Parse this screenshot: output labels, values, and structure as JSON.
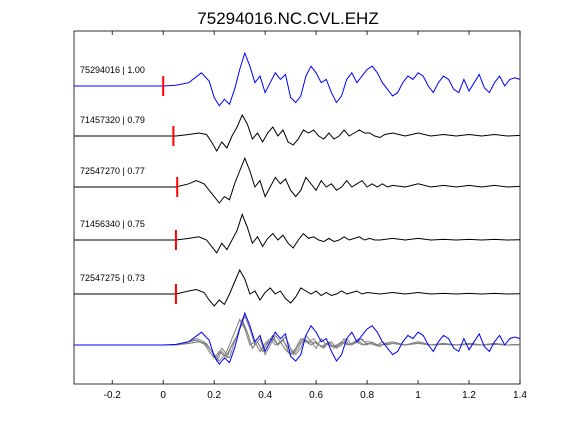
{
  "chart_data": {
    "type": "line",
    "title": "75294016.NC.CVL.EHZ",
    "xlabel": "",
    "ylabel": "",
    "xlim": [
      -0.35,
      1.4
    ],
    "x_ticks": [
      -0.2,
      0,
      0.2,
      0.4,
      0.6,
      0.8,
      1,
      1.2,
      1.4
    ],
    "x_tick_labels": [
      "-0.2",
      "0",
      "0.2",
      "0.4",
      "0.6",
      "0.8",
      "1",
      "1.2",
      "1.4"
    ],
    "grid": false,
    "series": [
      {
        "label": "75294016 | 1.00",
        "color": "#0000ff",
        "pick_time": 0.0,
        "baseline_level": 1,
        "points": [
          [
            -0.35,
            0
          ],
          [
            -0.2,
            0
          ],
          [
            0,
            0
          ],
          [
            0.05,
            0.02
          ],
          [
            0.1,
            0.1
          ],
          [
            0.15,
            0.4
          ],
          [
            0.18,
            0.15
          ],
          [
            0.2,
            -0.35
          ],
          [
            0.22,
            -0.6
          ],
          [
            0.24,
            -0.4
          ],
          [
            0.26,
            -0.55
          ],
          [
            0.28,
            -0.1
          ],
          [
            0.3,
            0.5
          ],
          [
            0.32,
            1.0
          ],
          [
            0.34,
            0.6
          ],
          [
            0.36,
            0.1
          ],
          [
            0.38,
            0.3
          ],
          [
            0.4,
            -0.2
          ],
          [
            0.42,
            0.1
          ],
          [
            0.44,
            0.4
          ],
          [
            0.46,
            0.2
          ],
          [
            0.48,
            0.35
          ],
          [
            0.5,
            -0.35
          ],
          [
            0.52,
            -0.5
          ],
          [
            0.54,
            -0.3
          ],
          [
            0.56,
            0.3
          ],
          [
            0.58,
            0.6
          ],
          [
            0.6,
            0.4
          ],
          [
            0.62,
            0.1
          ],
          [
            0.64,
            0.2
          ],
          [
            0.66,
            -0.2
          ],
          [
            0.68,
            -0.5
          ],
          [
            0.7,
            -0.3
          ],
          [
            0.72,
            0.2
          ],
          [
            0.74,
            0.4
          ],
          [
            0.76,
            0.1
          ],
          [
            0.78,
            0.3
          ],
          [
            0.8,
            0.5
          ],
          [
            0.82,
            0.6
          ],
          [
            0.84,
            0.4
          ],
          [
            0.86,
            0.1
          ],
          [
            0.88,
            -0.1
          ],
          [
            0.9,
            -0.3
          ],
          [
            0.92,
            -0.2
          ],
          [
            0.94,
            0.1
          ],
          [
            0.96,
            0.3
          ],
          [
            0.98,
            0.2
          ],
          [
            1.0,
            0.4
          ],
          [
            1.02,
            0.3
          ],
          [
            1.04,
            0.0
          ],
          [
            1.06,
            -0.2
          ],
          [
            1.08,
            0.1
          ],
          [
            1.1,
            0.3
          ],
          [
            1.12,
            0.2
          ],
          [
            1.14,
            -0.1
          ],
          [
            1.16,
            -0.2
          ],
          [
            1.18,
            0.2
          ],
          [
            1.2,
            -0.15
          ],
          [
            1.22,
            0.1
          ],
          [
            1.24,
            0.35
          ],
          [
            1.26,
            -0.05
          ],
          [
            1.28,
            -0.2
          ],
          [
            1.3,
            0.1
          ],
          [
            1.32,
            0.3
          ],
          [
            1.34,
            0.0
          ],
          [
            1.36,
            0.2
          ],
          [
            1.38,
            0.25
          ],
          [
            1.4,
            0.2
          ]
        ]
      },
      {
        "label": "71457320 | 0.79",
        "color": "#000000",
        "pick_time": 0.04,
        "baseline_level": 2,
        "points": [
          [
            -0.35,
            0
          ],
          [
            0,
            0
          ],
          [
            0.05,
            0
          ],
          [
            0.1,
            0.05
          ],
          [
            0.14,
            0.1
          ],
          [
            0.17,
            0.05
          ],
          [
            0.19,
            -0.2
          ],
          [
            0.21,
            -0.5
          ],
          [
            0.23,
            -0.2
          ],
          [
            0.25,
            -0.4
          ],
          [
            0.27,
            0.0
          ],
          [
            0.29,
            0.3
          ],
          [
            0.31,
            0.7
          ],
          [
            0.33,
            0.4
          ],
          [
            0.35,
            -0.1
          ],
          [
            0.37,
            0.1
          ],
          [
            0.39,
            -0.2
          ],
          [
            0.41,
            0.1
          ],
          [
            0.43,
            0.3
          ],
          [
            0.45,
            0.0
          ],
          [
            0.47,
            0.2
          ],
          [
            0.49,
            -0.2
          ],
          [
            0.51,
            -0.3
          ],
          [
            0.53,
            -0.1
          ],
          [
            0.55,
            0.2
          ],
          [
            0.57,
            0.1
          ],
          [
            0.59,
            0.2
          ],
          [
            0.61,
            0.0
          ],
          [
            0.63,
            -0.1
          ],
          [
            0.65,
            0.1
          ],
          [
            0.67,
            -0.1
          ],
          [
            0.69,
            0.0
          ],
          [
            0.71,
            0.2
          ],
          [
            0.73,
            0.0
          ],
          [
            0.75,
            0.1
          ],
          [
            0.77,
            0.2
          ],
          [
            0.79,
            0.1
          ],
          [
            0.81,
            0.1
          ],
          [
            0.83,
            0.0
          ],
          [
            0.85,
            -0.05
          ],
          [
            0.87,
            0.05
          ],
          [
            0.9,
            0.1
          ],
          [
            0.95,
            0.0
          ],
          [
            1.0,
            0.1
          ],
          [
            1.05,
            0.0
          ],
          [
            1.1,
            0.05
          ],
          [
            1.15,
            0.0
          ],
          [
            1.2,
            0.05
          ],
          [
            1.25,
            0.0
          ],
          [
            1.3,
            0.05
          ],
          [
            1.35,
            0.0
          ],
          [
            1.4,
            0.02
          ]
        ]
      },
      {
        "label": "72547270 | 0.77",
        "color": "#000000",
        "pick_time": 0.055,
        "baseline_level": 3,
        "points": [
          [
            -0.35,
            0
          ],
          [
            0,
            0
          ],
          [
            0.05,
            0
          ],
          [
            0.1,
            0.1
          ],
          [
            0.13,
            0.2
          ],
          [
            0.16,
            0.1
          ],
          [
            0.18,
            -0.1
          ],
          [
            0.2,
            -0.3
          ],
          [
            0.22,
            -0.5
          ],
          [
            0.24,
            -0.3
          ],
          [
            0.26,
            -0.4
          ],
          [
            0.28,
            0.1
          ],
          [
            0.3,
            0.5
          ],
          [
            0.32,
            0.9
          ],
          [
            0.34,
            0.5
          ],
          [
            0.36,
            0.0
          ],
          [
            0.38,
            0.2
          ],
          [
            0.4,
            -0.3
          ],
          [
            0.42,
            0.0
          ],
          [
            0.44,
            0.3
          ],
          [
            0.46,
            0.1
          ],
          [
            0.48,
            0.25
          ],
          [
            0.5,
            -0.1
          ],
          [
            0.52,
            -0.3
          ],
          [
            0.54,
            -0.1
          ],
          [
            0.56,
            0.3
          ],
          [
            0.58,
            0.1
          ],
          [
            0.6,
            -0.1
          ],
          [
            0.62,
            0.2
          ],
          [
            0.64,
            0.0
          ],
          [
            0.66,
            0.1
          ],
          [
            0.68,
            -0.1
          ],
          [
            0.7,
            0.0
          ],
          [
            0.72,
            0.2
          ],
          [
            0.74,
            0.0
          ],
          [
            0.76,
            0.1
          ],
          [
            0.78,
            0.2
          ],
          [
            0.8,
            0.0
          ],
          [
            0.82,
            0.1
          ],
          [
            0.84,
            0.0
          ],
          [
            0.86,
            0.1
          ],
          [
            0.88,
            0.0
          ],
          [
            0.9,
            0.05
          ],
          [
            0.95,
            0.0
          ],
          [
            1.0,
            0.1
          ],
          [
            1.05,
            0.0
          ],
          [
            1.1,
            0.05
          ],
          [
            1.15,
            0.0
          ],
          [
            1.2,
            0.05
          ],
          [
            1.25,
            0.0
          ],
          [
            1.3,
            0.05
          ],
          [
            1.35,
            0.0
          ],
          [
            1.4,
            0.02
          ]
        ]
      },
      {
        "label": "71456340 | 0.75",
        "color": "#000000",
        "pick_time": 0.05,
        "baseline_level": 4,
        "points": [
          [
            -0.35,
            0
          ],
          [
            0,
            0
          ],
          [
            0.05,
            0
          ],
          [
            0.1,
            0.05
          ],
          [
            0.14,
            0.1
          ],
          [
            0.17,
            0.0
          ],
          [
            0.19,
            -0.2
          ],
          [
            0.21,
            -0.4
          ],
          [
            0.23,
            -0.1
          ],
          [
            0.25,
            -0.3
          ],
          [
            0.27,
            0.0
          ],
          [
            0.29,
            0.3
          ],
          [
            0.31,
            0.8
          ],
          [
            0.33,
            0.4
          ],
          [
            0.35,
            -0.1
          ],
          [
            0.37,
            0.1
          ],
          [
            0.39,
            -0.2
          ],
          [
            0.41,
            0.05
          ],
          [
            0.43,
            0.2
          ],
          [
            0.45,
            0.0
          ],
          [
            0.47,
            0.15
          ],
          [
            0.49,
            -0.1
          ],
          [
            0.51,
            -0.25
          ],
          [
            0.53,
            0.0
          ],
          [
            0.55,
            0.2
          ],
          [
            0.57,
            0.05
          ],
          [
            0.59,
            0.1
          ],
          [
            0.61,
            0.0
          ],
          [
            0.63,
            -0.05
          ],
          [
            0.65,
            0.05
          ],
          [
            0.67,
            -0.05
          ],
          [
            0.69,
            0.0
          ],
          [
            0.71,
            0.1
          ],
          [
            0.73,
            0.0
          ],
          [
            0.75,
            0.05
          ],
          [
            0.77,
            0.1
          ],
          [
            0.79,
            0.0
          ],
          [
            0.81,
            0.05
          ],
          [
            0.83,
            0.0
          ],
          [
            0.85,
            0.0
          ],
          [
            0.9,
            0.05
          ],
          [
            0.95,
            0.0
          ],
          [
            1.0,
            0.05
          ],
          [
            1.05,
            0.0
          ],
          [
            1.1,
            0.02
          ],
          [
            1.15,
            0.0
          ],
          [
            1.2,
            0.02
          ],
          [
            1.25,
            0.0
          ],
          [
            1.3,
            0.02
          ],
          [
            1.35,
            0.0
          ],
          [
            1.4,
            0.01
          ]
        ]
      },
      {
        "label": "72547275 | 0.73",
        "color": "#000000",
        "pick_time": 0.05,
        "baseline_level": 5,
        "points": [
          [
            -0.35,
            0
          ],
          [
            0,
            0
          ],
          [
            0.05,
            0
          ],
          [
            0.1,
            0.1
          ],
          [
            0.13,
            0.15
          ],
          [
            0.16,
            0.05
          ],
          [
            0.18,
            -0.2
          ],
          [
            0.2,
            -0.4
          ],
          [
            0.22,
            -0.2
          ],
          [
            0.24,
            -0.35
          ],
          [
            0.26,
            0.0
          ],
          [
            0.28,
            0.4
          ],
          [
            0.3,
            0.8
          ],
          [
            0.32,
            0.5
          ],
          [
            0.34,
            0.0
          ],
          [
            0.36,
            0.1
          ],
          [
            0.38,
            -0.2
          ],
          [
            0.4,
            0.05
          ],
          [
            0.42,
            0.2
          ],
          [
            0.44,
            0.0
          ],
          [
            0.46,
            0.1
          ],
          [
            0.48,
            -0.15
          ],
          [
            0.5,
            -0.3
          ],
          [
            0.52,
            -0.1
          ],
          [
            0.54,
            0.2
          ],
          [
            0.56,
            0.1
          ],
          [
            0.58,
            0.0
          ],
          [
            0.6,
            0.1
          ],
          [
            0.62,
            -0.05
          ],
          [
            0.64,
            0.05
          ],
          [
            0.66,
            -0.05
          ],
          [
            0.68,
            0.0
          ],
          [
            0.7,
            0.1
          ],
          [
            0.72,
            0.0
          ],
          [
            0.74,
            0.05
          ],
          [
            0.76,
            0.1
          ],
          [
            0.78,
            0.0
          ],
          [
            0.8,
            0.05
          ],
          [
            0.85,
            0.0
          ],
          [
            0.9,
            0.05
          ],
          [
            0.95,
            0.0
          ],
          [
            1.0,
            0.05
          ],
          [
            1.05,
            0.0
          ],
          [
            1.1,
            0.02
          ],
          [
            1.15,
            0.0
          ],
          [
            1.2,
            0.02
          ],
          [
            1.25,
            0.0
          ],
          [
            1.3,
            0.02
          ],
          [
            1.35,
            0.0
          ],
          [
            1.4,
            0.01
          ]
        ]
      }
    ],
    "overlay": {
      "baseline_level": 6,
      "primary_color": "#0000ff",
      "others_color": "#808080"
    }
  }
}
